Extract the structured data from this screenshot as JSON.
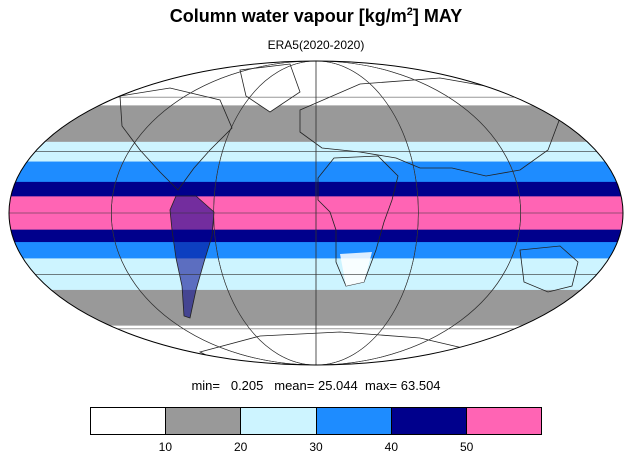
{
  "title": {
    "main": "Column water vapour [kg/m",
    "sup": "2",
    "suffix": "] MAY"
  },
  "subtitle": "ERA5(2020-2020)",
  "stats": {
    "min_label": "min=",
    "min": "0.205",
    "mean_label": "mean=",
    "mean": "25.044",
    "max_label": "max=",
    "max": "63.504"
  },
  "colorbar": {
    "colors": [
      "#ffffff",
      "#999999",
      "#cdf4ff",
      "#1e8cff",
      "#00008c",
      "#ff64b4"
    ],
    "ticks": [
      "10",
      "20",
      "30",
      "40",
      "50"
    ]
  },
  "map": {
    "projection": "Mollweide",
    "bands": [
      {
        "lat_from": 90,
        "lat_to": 55,
        "class": 0
      },
      {
        "lat_from": 55,
        "lat_to": 35,
        "class": 1
      },
      {
        "lat_from": 35,
        "lat_to": 25,
        "class": 2
      },
      {
        "lat_from": 25,
        "lat_to": 15,
        "class": 3
      },
      {
        "lat_from": 15,
        "lat_to": 8,
        "class": 4
      },
      {
        "lat_from": 8,
        "lat_to": -8,
        "class": 5
      },
      {
        "lat_from": -8,
        "lat_to": -14,
        "class": 4
      },
      {
        "lat_from": -14,
        "lat_to": -22,
        "class": 3
      },
      {
        "lat_from": -22,
        "lat_to": -38,
        "class": 2
      },
      {
        "lat_from": -38,
        "lat_to": -58,
        "class": 1
      },
      {
        "lat_from": -58,
        "lat_to": -90,
        "class": 0
      }
    ]
  }
}
